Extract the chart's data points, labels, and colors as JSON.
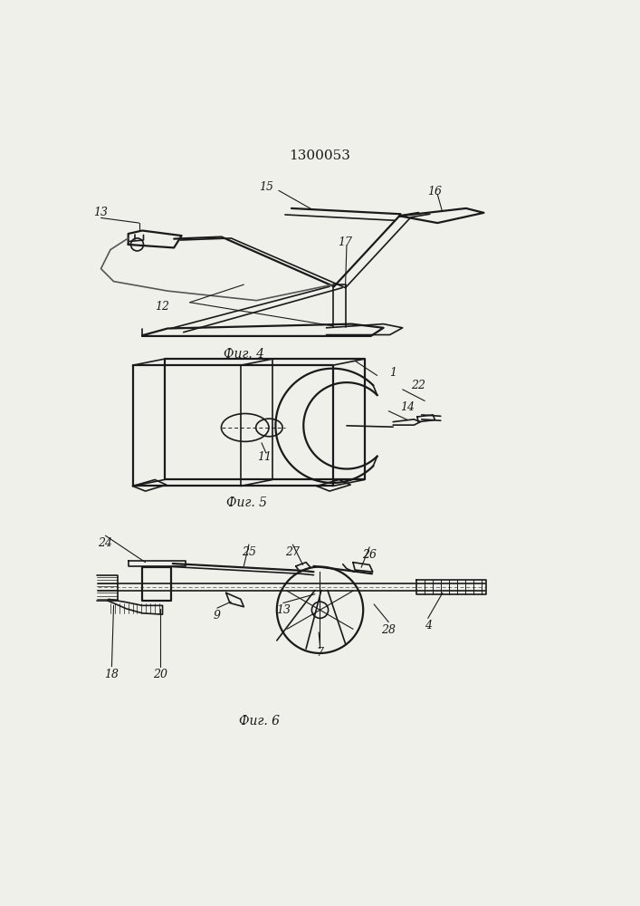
{
  "title": "1300053",
  "fig4_label": "Фиг. 4",
  "fig5_label": "Фиг. 5",
  "fig6_label": "Фиг. 6",
  "bg_color": "#f0f0eb",
  "line_color": "#1a1a1a",
  "lw": 1.2,
  "lw2": 1.6
}
